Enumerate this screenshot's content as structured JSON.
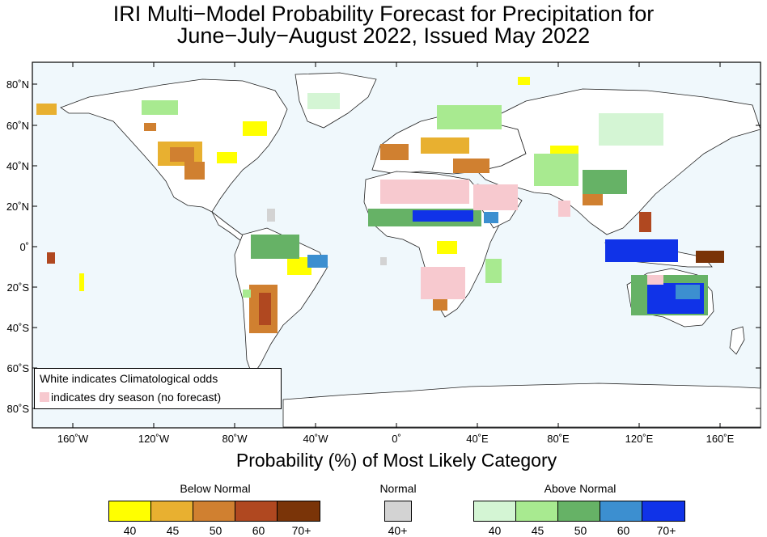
{
  "title": {
    "line1": "IRI Multi−Model Probability Forecast for Precipitation for",
    "line2": "June−July−August 2022, Issued May 2022"
  },
  "map": {
    "lat_ticks": [
      "80˚N",
      "60˚N",
      "40˚N",
      "20˚N",
      "0˚",
      "20˚S",
      "40˚S",
      "60˚S",
      "80˚S"
    ],
    "lon_ticks": [
      "160˚W",
      "120˚W",
      "80˚W",
      "40˚W",
      "0˚",
      "40˚E",
      "80˚E",
      "120˚E",
      "160˚E"
    ],
    "ocean_color": "#f0f8fc",
    "land_color": "#ffffff"
  },
  "legend": {
    "line1": "White indicates Climatological odds",
    "line2": "indicates dry season (no forecast)",
    "dry_color": "#f7c9cf"
  },
  "xlabel": "Probability (%) of Most Likely Category",
  "colorbars": {
    "below": {
      "title": "Below Normal",
      "labels": [
        "40",
        "45",
        "50",
        "60",
        "70+"
      ],
      "colors": [
        "#ffff00",
        "#e8b030",
        "#d08030",
        "#b04820",
        "#7a3408"
      ]
    },
    "normal": {
      "title": "Normal",
      "labels": [
        "40+"
      ],
      "colors": [
        "#d3d3d3"
      ]
    },
    "above": {
      "title": "Above Normal",
      "labels": [
        "40",
        "45",
        "50",
        "60",
        "70+"
      ],
      "colors": [
        "#d4f5d4",
        "#a8ea90",
        "#66b266",
        "#3c8fd0",
        "#1033e8"
      ]
    }
  }
}
